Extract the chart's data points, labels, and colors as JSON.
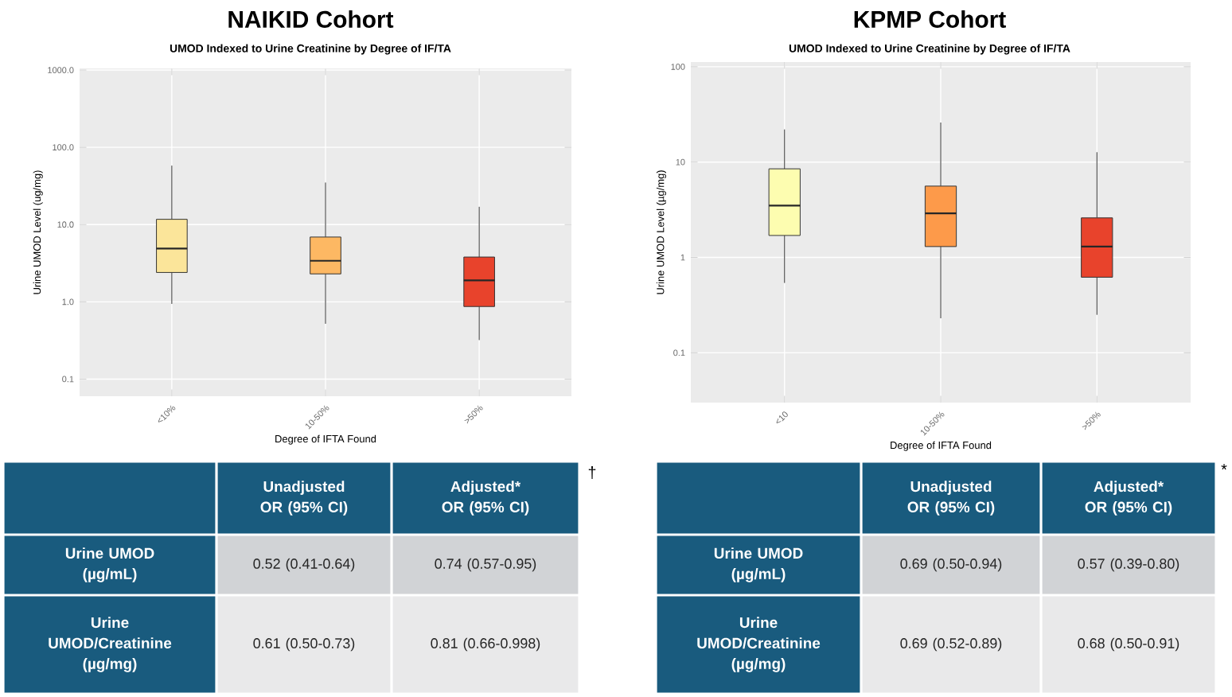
{
  "chart_data": [
    {
      "type": "box",
      "title": "NAIKID Cohort",
      "subtitle": "UMOD Indexed to Urine Creatinine by Degree of IF/TA",
      "xlabel": "Degree of IFTA Found",
      "ylabel": "Urine UMOD Level (ug/mg)",
      "categories": [
        "<10%",
        "10-50%",
        ">50%"
      ],
      "colors": [
        "#fbe59a",
        "#fdb863",
        "#e8432c"
      ],
      "boxes": [
        {
          "low": 0.94,
          "q1": 2.4,
          "median": 4.9,
          "q3": 11.7,
          "high": 58
        },
        {
          "low": 0.52,
          "q1": 2.3,
          "median": 3.4,
          "q3": 6.9,
          "high": 35
        },
        {
          "low": 0.32,
          "q1": 0.87,
          "median": 1.9,
          "q3": 3.8,
          "high": 17
        }
      ],
      "log": true,
      "ylim": [
        0.06,
        1050
      ],
      "yticks": [
        {
          "value": 0.1,
          "label": "0.1"
        },
        {
          "value": 1,
          "label": "1.0"
        },
        {
          "value": 10,
          "label": "10.0"
        },
        {
          "value": 100,
          "label": "100.0"
        },
        {
          "value": 1000,
          "label": "1000.0"
        }
      ],
      "grid": true
    },
    {
      "type": "box",
      "title": "KPMP Cohort",
      "subtitle": "UMOD Indexed to Urine Creatinine by Degree of IF/TA",
      "xlabel": "Degree of IFTA Found",
      "ylabel": "Urine UMOD Level (µg/mg)",
      "categories": [
        "<10",
        "10-50%",
        ">50%"
      ],
      "colors": [
        "#fdfdb0",
        "#fd9a4a",
        "#e8432c"
      ],
      "boxes": [
        {
          "low": 0.54,
          "q1": 1.7,
          "median": 3.5,
          "q3": 8.5,
          "high": 22
        },
        {
          "low": 0.23,
          "q1": 1.3,
          "median": 2.9,
          "q3": 5.6,
          "high": 26
        },
        {
          "low": 0.25,
          "q1": 0.62,
          "median": 1.3,
          "q3": 2.6,
          "high": 12.7
        }
      ],
      "log": true,
      "ylim": [
        0.03,
        112
      ],
      "yticks": [
        0.1,
        1,
        10,
        100
      ],
      "grid": true
    },
    {
      "type": "other",
      "annotations": [
        "Unadjusted OR (95% CI)",
        "Adjusted* OR (95% CI)",
        "Urine UMOD (µg/mL)",
        "0.52 (0.41-0.64)",
        "0.74 (0.57-0.95)",
        "Urine UMOD/Creatinine (µg/mg)",
        "0.61 (0.50-0.73)",
        "0.81 (0.66-0.998)",
        "†"
      ]
    },
    {
      "type": "other",
      "annotations": [
        "Unadjusted OR (95% CI)",
        "Adjusted* OR (95% CI)",
        "Urine UMOD (µg/mL)",
        "0.69 (0.50-0.94)",
        "0.57 (0.39-0.80)",
        "Urine UMOD/Creatinine (µg/mg)",
        "0.69 (0.52-0.89)",
        "0.68 (0.50-0.91)",
        "*"
      ]
    }
  ]
}
